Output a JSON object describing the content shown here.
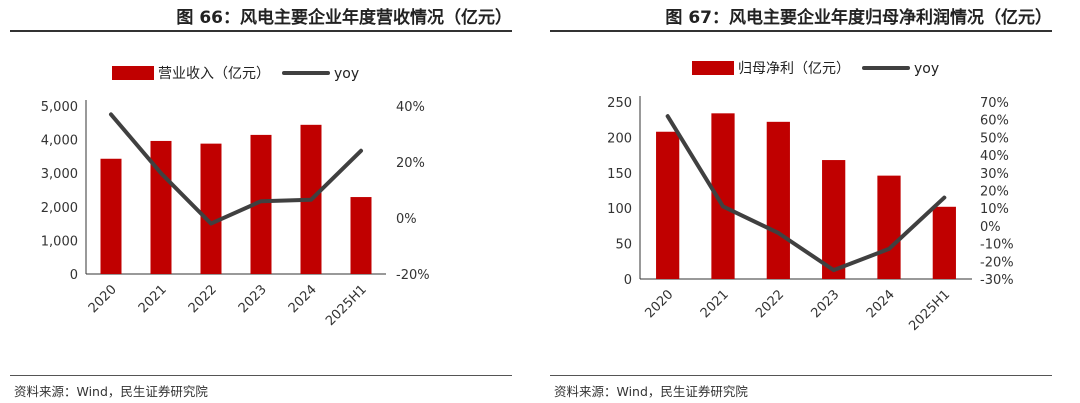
{
  "colors": {
    "bar": "#c00000",
    "line": "#404040",
    "axis": "#333333"
  },
  "charts": [
    {
      "title": "图 66：风电主要企业年度营收情况（亿元）",
      "source": "资料来源：Wind，民生证券研究院",
      "chart_data": {
        "type": "bar",
        "categories": [
          "2020",
          "2021",
          "2022",
          "2023",
          "2024",
          "2025H1"
        ],
        "series": [
          {
            "name": "营业收入（亿元）",
            "type": "bar",
            "axis": "left",
            "values": [
              3430,
              3960,
              3880,
              4140,
              4440,
              2290
            ]
          },
          {
            "name": "yoy",
            "type": "line",
            "axis": "right",
            "values": [
              37,
              16,
              -2,
              6,
              6.5,
              24
            ]
          }
        ],
        "ylim_left": [
          0,
          5000
        ],
        "ylim_right": [
          -20,
          40
        ],
        "yticks_left": [
          "5,000",
          "4,000",
          "3,000",
          "2,000",
          "1,000",
          "0"
        ],
        "yticks_right": [
          "40%",
          "20%",
          "0%",
          "-20%"
        ],
        "legend": "top"
      }
    },
    {
      "title": "图 67：风电主要企业年度归母净利润情况（亿元）",
      "source": "资料来源：Wind，民生证券研究院",
      "chart_data": {
        "type": "bar",
        "categories": [
          "2020",
          "2021",
          "2022",
          "2023",
          "2024",
          "2025H1"
        ],
        "series": [
          {
            "name": "归母净利（亿元）",
            "type": "bar",
            "axis": "left",
            "values": [
              208,
              234,
              222,
              168,
              146,
              102
            ]
          },
          {
            "name": "yoy",
            "type": "line",
            "axis": "right",
            "values": [
              62,
              11,
              -4,
              -25,
              -13,
              16
            ]
          }
        ],
        "ylim_left": [
          0,
          250
        ],
        "ylim_right": [
          -30,
          70
        ],
        "yticks_left": [
          "250",
          "200",
          "150",
          "100",
          "50",
          "0"
        ],
        "yticks_right": [
          "70%",
          "60%",
          "50%",
          "40%",
          "30%",
          "20%",
          "10%",
          "0%",
          "-10%",
          "-20%",
          "-30%"
        ],
        "legend": "top"
      }
    }
  ]
}
